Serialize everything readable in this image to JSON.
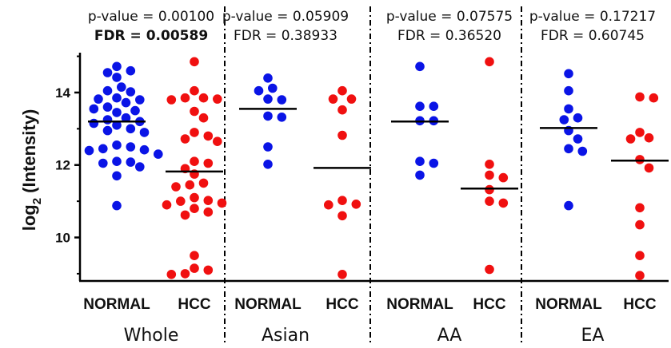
{
  "chart_data": {
    "type": "scatter",
    "ylabel": "log",
    "ylabel_sub": "2",
    "ylabel_rest": " (Intensity)",
    "ylim": [
      8.8,
      15.1
    ],
    "yticks": [
      "10",
      "12",
      "14"
    ],
    "ytick_values": [
      10,
      12,
      14
    ],
    "colors": {
      "NORMAL": "#0a14e6",
      "HCC": "#f01010"
    },
    "groups": [
      {
        "name": "Whole",
        "pvalue": "p-value = 0.00100",
        "fdr": "FDR = 0.00589",
        "fdr_bold": true,
        "series": [
          {
            "category": "NORMAL",
            "mean": 13.2,
            "values": [
              14.72,
              14.6,
              14.55,
              14.42,
              14.15,
              14.05,
              14.02,
              13.85,
              13.82,
              13.8,
              13.72,
              13.6,
              13.55,
              13.5,
              13.45,
              13.3,
              13.25,
              13.2,
              13.15,
              13.1,
              13.0,
              12.95,
              12.9,
              12.55,
              12.5,
              12.45,
              12.42,
              12.4,
              12.3,
              12.1,
              12.08,
              12.05,
              11.95,
              11.7,
              10.88
            ]
          },
          {
            "category": "HCC",
            "mean": 11.82,
            "values": [
              14.85,
              14.05,
              13.85,
              13.85,
              13.82,
              13.8,
              13.48,
              13.3,
              12.9,
              12.8,
              12.72,
              12.65,
              12.1,
              12.05,
              11.9,
              11.75,
              11.5,
              11.45,
              11.4,
              11.1,
              11.02,
              11.0,
              10.95,
              10.9,
              10.8,
              10.7,
              10.62,
              9.5,
              9.15,
              9.1,
              9.0,
              8.98
            ]
          }
        ]
      },
      {
        "name": "Asian",
        "pvalue": "p-value = 0.05909",
        "fdr": "FDR = 0.38933",
        "fdr_bold": false,
        "series": [
          {
            "category": "NORMAL",
            "mean": 13.55,
            "values": [
              14.4,
              14.12,
              14.05,
              13.82,
              13.8,
              13.35,
              13.32,
              12.5,
              12.02
            ]
          },
          {
            "category": "HCC",
            "mean": 11.92,
            "values": [
              14.05,
              13.82,
              13.82,
              13.52,
              12.82,
              11.02,
              10.92,
              10.9,
              10.6,
              8.98
            ]
          }
        ]
      },
      {
        "name": "AA",
        "pvalue": "p-value = 0.07575",
        "fdr": "FDR = 0.36520",
        "fdr_bold": false,
        "series": [
          {
            "category": "NORMAL",
            "mean": 13.2,
            "values": [
              14.72,
              13.62,
              13.62,
              13.22,
              13.22,
              12.1,
              12.05,
              11.72
            ]
          },
          {
            "category": "HCC",
            "mean": 11.35,
            "values": [
              14.85,
              12.02,
              11.72,
              11.65,
              11.32,
              11.0,
              10.95,
              9.12
            ]
          }
        ]
      },
      {
        "name": "EA",
        "pvalue": "p-value = 0.17217",
        "fdr": "FDR = 0.60745",
        "fdr_bold": false,
        "series": [
          {
            "category": "NORMAL",
            "mean": 13.02,
            "values": [
              14.52,
              14.05,
              13.55,
              13.3,
              13.25,
              12.95,
              12.72,
              12.45,
              12.38,
              10.88
            ]
          },
          {
            "category": "HCC",
            "mean": 12.12,
            "values": [
              13.88,
              13.85,
              12.9,
              12.75,
              12.72,
              12.15,
              11.92,
              10.82,
              10.35,
              9.5,
              8.95
            ]
          }
        ]
      }
    ]
  }
}
